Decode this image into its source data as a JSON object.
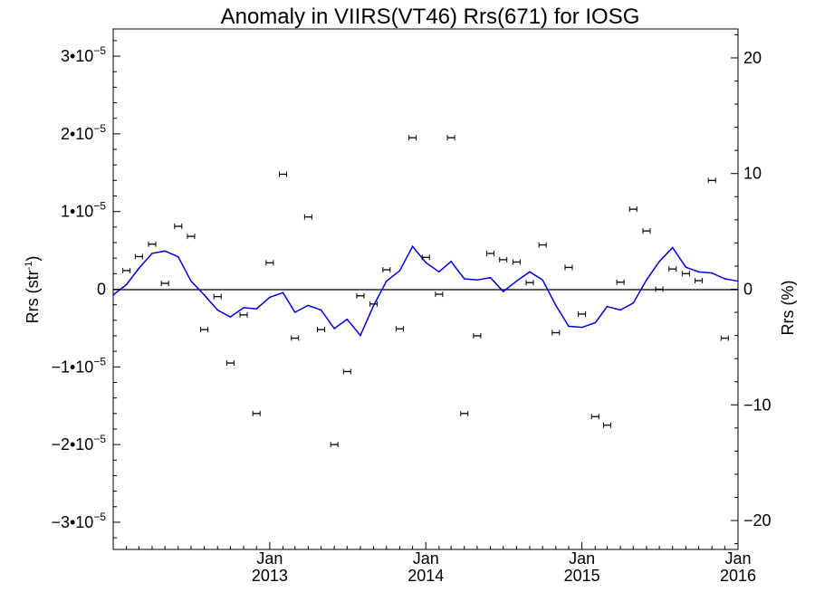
{
  "chart_data": {
    "type": "scatter",
    "title": "Anomaly in VIIRS(VT46) Rrs(671) for IOSG",
    "ylabel_left": "Rrs (str",
    "ylabel_left_sup": "-1",
    "ylabel_left_tail": ")",
    "ylabel_right": "Rrs (%)",
    "xlim": [
      "2012-01-01",
      "2016-01-01"
    ],
    "ylim_left": [
      -3.35e-05,
      3.35e-05
    ],
    "ylim_right": [
      -22.5,
      22.5
    ],
    "left_ticks": [
      {
        "value": 3e-05,
        "label": "3•10",
        "exp": "−5"
      },
      {
        "value": 2e-05,
        "label": "2•10",
        "exp": "−5"
      },
      {
        "value": 1e-05,
        "label": "1•10",
        "exp": "−5"
      },
      {
        "value": 0,
        "label": "0",
        "exp": ""
      },
      {
        "value": -1e-05,
        "label": "−1•10",
        "exp": "−5"
      },
      {
        "value": -2e-05,
        "label": "−2•10",
        "exp": "−5"
      },
      {
        "value": -3e-05,
        "label": "−3•10",
        "exp": "−5"
      }
    ],
    "right_ticks": [
      {
        "value": 20,
        "label": "20"
      },
      {
        "value": 10,
        "label": "10"
      },
      {
        "value": 0,
        "label": "0"
      },
      {
        "value": -10,
        "label": "−10"
      },
      {
        "value": -20,
        "label": "−20"
      }
    ],
    "x_ticks": [
      {
        "date": "2013-01-01",
        "month": "Jan",
        "year": "2013"
      },
      {
        "date": "2014-01-01",
        "month": "Jan",
        "year": "2014"
      },
      {
        "date": "2015-01-01",
        "month": "Jan",
        "year": "2015"
      },
      {
        "date": "2016-01-01",
        "month": "Jan",
        "year": "2016"
      }
    ],
    "zero_line": true,
    "grid": false,
    "series": [
      {
        "kind": "scatter-errorbar",
        "color": "#000000",
        "axis": "left",
        "points": [
          {
            "x": "2012-02-01",
            "y": 2.4e-06
          },
          {
            "x": "2012-03-01",
            "y": 4.2e-06
          },
          {
            "x": "2012-04-01",
            "y": 5.8e-06
          },
          {
            "x": "2012-05-01",
            "y": 7.5e-07
          },
          {
            "x": "2012-06-01",
            "y": 8.1e-06
          },
          {
            "x": "2012-07-01",
            "y": 6.8e-06
          },
          {
            "x": "2012-08-01",
            "y": -5.2e-06
          },
          {
            "x": "2012-09-01",
            "y": -9.5e-07
          },
          {
            "x": "2012-10-01",
            "y": -9.5e-06
          },
          {
            "x": "2012-11-01",
            "y": -3.3e-06
          },
          {
            "x": "2012-12-01",
            "y": -1.6e-05
          },
          {
            "x": "2013-01-01",
            "y": 3.4e-06
          },
          {
            "x": "2013-02-01",
            "y": 1.48e-05
          },
          {
            "x": "2013-03-01",
            "y": -6.3e-06
          },
          {
            "x": "2013-04-01",
            "y": 9.3e-06
          },
          {
            "x": "2013-05-01",
            "y": -5.2e-06
          },
          {
            "x": "2013-06-01",
            "y": -2e-05
          },
          {
            "x": "2013-07-01",
            "y": -1.06e-05
          },
          {
            "x": "2013-08-01",
            "y": -8.5e-07
          },
          {
            "x": "2013-09-01",
            "y": -1.9e-06
          },
          {
            "x": "2013-10-01",
            "y": 2.5e-06
          },
          {
            "x": "2013-11-01",
            "y": -5.1e-06
          },
          {
            "x": "2013-12-01",
            "y": 1.95e-05
          },
          {
            "x": "2014-01-01",
            "y": 4.1e-06
          },
          {
            "x": "2014-02-01",
            "y": -6.5e-07
          },
          {
            "x": "2014-03-01",
            "y": 1.95e-05
          },
          {
            "x": "2014-04-01",
            "y": -1.6e-05
          },
          {
            "x": "2014-05-01",
            "y": -6e-06
          },
          {
            "x": "2014-06-01",
            "y": 4.6e-06
          },
          {
            "x": "2014-07-01",
            "y": 3.8e-06
          },
          {
            "x": "2014-08-01",
            "y": 3.5e-06
          },
          {
            "x": "2014-09-01",
            "y": 8.5e-07
          },
          {
            "x": "2014-10-01",
            "y": 5.7e-06
          },
          {
            "x": "2014-11-01",
            "y": -5.6e-06
          },
          {
            "x": "2014-12-01",
            "y": 2.8e-06
          },
          {
            "x": "2015-01-01",
            "y": -3.2e-06
          },
          {
            "x": "2015-02-01",
            "y": -1.64e-05
          },
          {
            "x": "2015-03-01",
            "y": -1.75e-05
          },
          {
            "x": "2015-04-01",
            "y": 9e-07
          },
          {
            "x": "2015-05-01",
            "y": 1.03e-05
          },
          {
            "x": "2015-06-01",
            "y": 7.5e-06
          },
          {
            "x": "2015-07-01",
            "y": 0
          },
          {
            "x": "2015-08-01",
            "y": 2.6e-06
          },
          {
            "x": "2015-09-01",
            "y": 2e-06
          },
          {
            "x": "2015-10-01",
            "y": 1.1e-06
          },
          {
            "x": "2015-11-01",
            "y": 1.4e-05
          },
          {
            "x": "2015-12-01",
            "y": -6.3e-06
          }
        ]
      },
      {
        "kind": "line",
        "color": "#0000dd",
        "axis": "right",
        "points": [
          {
            "x": "2012-01-01",
            "y": -0.5
          },
          {
            "x": "2012-02-01",
            "y": 0.4
          },
          {
            "x": "2012-03-01",
            "y": 1.8
          },
          {
            "x": "2012-04-01",
            "y": 3.1
          },
          {
            "x": "2012-05-01",
            "y": 3.3
          },
          {
            "x": "2012-06-01",
            "y": 2.8
          },
          {
            "x": "2012-07-01",
            "y": 0.7
          },
          {
            "x": "2012-08-01",
            "y": -0.5
          },
          {
            "x": "2012-09-01",
            "y": -1.8
          },
          {
            "x": "2012-10-01",
            "y": -2.4
          },
          {
            "x": "2012-11-01",
            "y": -1.6
          },
          {
            "x": "2012-12-01",
            "y": -1.7
          },
          {
            "x": "2013-01-01",
            "y": -0.7
          },
          {
            "x": "2013-02-01",
            "y": -0.3
          },
          {
            "x": "2013-03-01",
            "y": -2.0
          },
          {
            "x": "2013-04-01",
            "y": -1.4
          },
          {
            "x": "2013-05-01",
            "y": -1.8
          },
          {
            "x": "2013-06-01",
            "y": -3.4
          },
          {
            "x": "2013-07-01",
            "y": -2.6
          },
          {
            "x": "2013-08-01",
            "y": -4.0
          },
          {
            "x": "2013-09-01",
            "y": -1.4
          },
          {
            "x": "2013-10-01",
            "y": 0.7
          },
          {
            "x": "2013-11-01",
            "y": 1.6
          },
          {
            "x": "2013-12-01",
            "y": 3.7
          },
          {
            "x": "2014-01-01",
            "y": 2.3
          },
          {
            "x": "2014-02-01",
            "y": 1.5
          },
          {
            "x": "2014-03-01",
            "y": 2.4
          },
          {
            "x": "2014-04-01",
            "y": 0.9
          },
          {
            "x": "2014-05-01",
            "y": 0.8
          },
          {
            "x": "2014-06-01",
            "y": 1.0
          },
          {
            "x": "2014-07-01",
            "y": -0.2
          },
          {
            "x": "2014-08-01",
            "y": 0.7
          },
          {
            "x": "2014-09-01",
            "y": 1.5
          },
          {
            "x": "2014-10-01",
            "y": 0.8
          },
          {
            "x": "2014-11-01",
            "y": -1.4
          },
          {
            "x": "2014-12-01",
            "y": -3.2
          },
          {
            "x": "2015-01-01",
            "y": -3.3
          },
          {
            "x": "2015-02-01",
            "y": -2.9
          },
          {
            "x": "2015-03-01",
            "y": -1.5
          },
          {
            "x": "2015-04-01",
            "y": -1.8
          },
          {
            "x": "2015-05-01",
            "y": -1.2
          },
          {
            "x": "2015-06-01",
            "y": 0.8
          },
          {
            "x": "2015-07-01",
            "y": 2.4
          },
          {
            "x": "2015-08-01",
            "y": 3.6
          },
          {
            "x": "2015-09-01",
            "y": 1.9
          },
          {
            "x": "2015-10-01",
            "y": 1.5
          },
          {
            "x": "2015-11-01",
            "y": 1.4
          },
          {
            "x": "2015-12-01",
            "y": 0.9
          },
          {
            "x": "2016-01-01",
            "y": 0.7
          }
        ]
      }
    ]
  }
}
